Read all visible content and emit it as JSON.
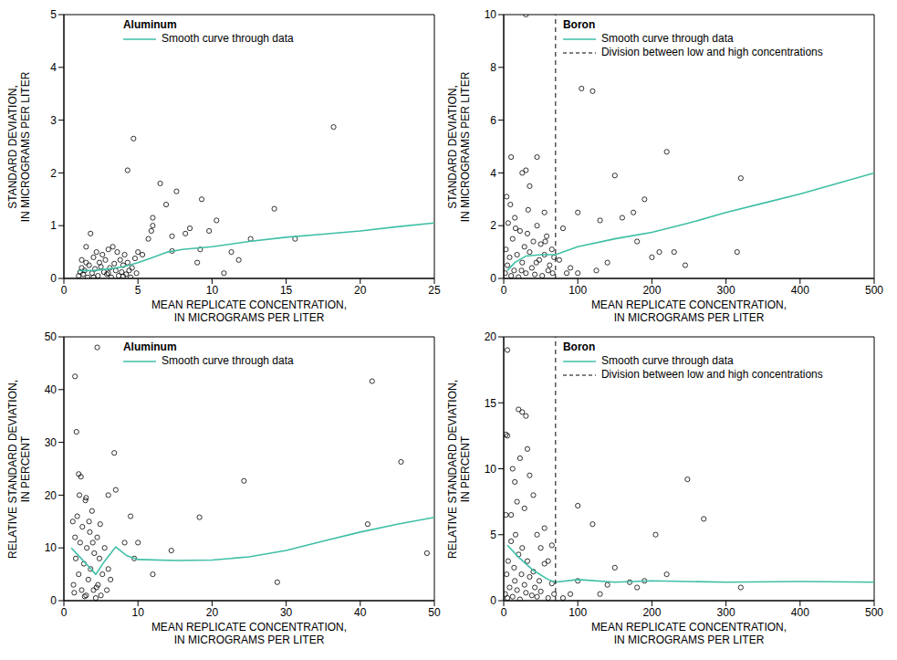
{
  "chart_data": [
    {
      "type": "scatter",
      "title": "Aluminum",
      "xlabel": [
        "MEAN REPLICATE CONCENTRATION,",
        "IN MICROGRAMS PER LITER"
      ],
      "ylabel": [
        "STANDARD DEVIATION,",
        "IN MICROGRAMS PER LITER"
      ],
      "xlim": [
        0,
        25
      ],
      "xticks": [
        0,
        5,
        10,
        15,
        20,
        25
      ],
      "ylim": [
        0,
        5
      ],
      "yticks": [
        0,
        1,
        2,
        3,
        4,
        5
      ],
      "grid": false,
      "series": [
        {
          "type": "scatter",
          "marker": "circle",
          "color": "#000000",
          "x": [
            1,
            1.1,
            1.2,
            1.3,
            1.4,
            1.5,
            1.5,
            1.6,
            1.7,
            1.8,
            1.9,
            2,
            2.1,
            2.2,
            2.3,
            2.4,
            2.5,
            2.6,
            2.7,
            2.8,
            2.9,
            3,
            3.1,
            3.2,
            3.3,
            3.4,
            3.5,
            3.6,
            3.7,
            3.8,
            3.9,
            4,
            4.1,
            4.2,
            4.3,
            4.4,
            4.5,
            4.6,
            4.8,
            4.9,
            5,
            1.2,
            2,
            3,
            4,
            4.3,
            4.7,
            5.3,
            5.7,
            5.9,
            6,
            6,
            6.5,
            6.9,
            7.3,
            7.3,
            7.6,
            8.2,
            8.5,
            9,
            9.2,
            9.3,
            9.8,
            10.3,
            10.8,
            11.3,
            11.8,
            12.6,
            14.2,
            15.6,
            18.2
          ],
          "values": [
            0.05,
            0.12,
            0.2,
            0.08,
            0.15,
            0.6,
            0.3,
            0.02,
            0.25,
            0.85,
            0.1,
            0.4,
            0.18,
            0.5,
            0.05,
            0.3,
            0.22,
            0.45,
            0.12,
            0.35,
            0.08,
            0.55,
            0.2,
            0.02,
            0.6,
            0.28,
            0.15,
            0.5,
            0.05,
            0.35,
            0.12,
            0.25,
            0.45,
            0.08,
            0.3,
            0.15,
            0.02,
            0.2,
            0.38,
            0.1,
            0.5,
            0.35,
            0.02,
            0.1,
            0.04,
            2.05,
            2.65,
            0.45,
            0.75,
            0.9,
            1.0,
            1.15,
            1.8,
            1.4,
            0.8,
            0.52,
            1.65,
            0.85,
            0.95,
            0.3,
            0.55,
            1.5,
            0.9,
            1.1,
            0.1,
            0.5,
            0.35,
            0.75,
            1.32,
            0.75,
            2.87
          ]
        },
        {
          "type": "line",
          "name": "Smooth curve through data",
          "color": "#3fbfa6",
          "line_style": "solid",
          "x": [
            1,
            2,
            3,
            4,
            5,
            6,
            7,
            8,
            10,
            12.5,
            15,
            17.5,
            20,
            22.5,
            25
          ],
          "values": [
            0.15,
            0.15,
            0.18,
            0.22,
            0.3,
            0.4,
            0.5,
            0.55,
            0.6,
            0.7,
            0.78,
            0.84,
            0.9,
            0.98,
            1.05
          ]
        }
      ]
    },
    {
      "type": "scatter",
      "title": "Boron",
      "xlabel": [
        "MEAN REPLICATE CONCENTRATION,",
        "IN MICROGRAMS PER LITER"
      ],
      "ylabel": [
        "STANDARD DEVIATION,",
        "IN MICROGRAMS PER LITER"
      ],
      "xlim": [
        0,
        500
      ],
      "xticks": [
        0,
        100,
        200,
        300,
        400,
        500
      ],
      "ylim": [
        0,
        10
      ],
      "yticks": [
        0,
        2,
        4,
        6,
        8,
        10
      ],
      "grid": false,
      "series": [
        {
          "type": "scatter",
          "marker": "circle",
          "color": "#000000",
          "x": [
            2,
            3,
            5,
            6,
            8,
            10,
            12,
            14,
            15,
            18,
            20,
            22,
            25,
            28,
            30,
            33,
            35,
            38,
            40,
            42,
            45,
            48,
            50,
            52,
            55,
            58,
            60,
            62,
            65,
            68,
            4,
            9,
            16,
            24,
            32,
            44,
            56,
            66,
            10,
            25,
            30,
            35,
            45,
            55,
            30,
            75,
            80,
            85,
            90,
            100,
            100,
            105,
            120,
            125,
            130,
            140,
            150,
            160,
            175,
            180,
            190,
            200,
            210,
            220,
            230,
            245,
            315,
            320
          ],
          "values": [
            0.2,
            1.1,
            0.5,
            2.1,
            0.8,
            0.1,
            1.5,
            0.3,
            2.3,
            0.9,
            0.05,
            1.8,
            0.6,
            1.2,
            0.2,
            2.6,
            1.0,
            0.4,
            1.4,
            0.15,
            2.0,
            0.7,
            1.3,
            0.1,
            0.9,
            1.6,
            0.3,
            0.5,
            1.1,
            0.8,
            3.1,
            2.8,
            1.9,
            0.3,
            1.7,
            0.6,
            1.4,
            0.2,
            4.6,
            4,
            4.1,
            3.5,
            4.6,
            2.5,
            10,
            0.7,
            1.9,
            0.2,
            0.4,
            2.5,
            0.2,
            7.2,
            7.1,
            0.3,
            2.2,
            0.6,
            3.9,
            2.3,
            2.5,
            1.4,
            3,
            0.8,
            1,
            4.8,
            1,
            0.5,
            1,
            3.8
          ]
        },
        {
          "type": "line",
          "name": "Smooth curve through data",
          "color": "#3fbfa6",
          "line_style": "solid",
          "x": [
            5,
            15,
            30,
            50,
            70,
            100,
            150,
            200,
            250,
            300,
            350,
            400,
            450,
            500
          ],
          "values": [
            0.3,
            0.6,
            0.85,
            0.9,
            0.9,
            1.2,
            1.5,
            1.75,
            2.1,
            2.5,
            2.85,
            3.2,
            3.6,
            4
          ]
        },
        {
          "type": "line",
          "name": "Division between low and high concentrations",
          "color": "#000000",
          "line_style": "dashed",
          "x": [
            70,
            70
          ],
          "values": [
            0,
            10
          ]
        }
      ]
    },
    {
      "type": "scatter",
      "title": "Aluminum",
      "xlabel": [
        "MEAN REPLICATE CONCENTRATION,",
        "IN MICROGRAMS PER LITER"
      ],
      "ylabel": [
        "RELATIVE STANDARD DEVIATION,",
        "IN PERCENT"
      ],
      "xlim": [
        0,
        50
      ],
      "xticks": [
        0,
        10,
        20,
        30,
        40,
        50
      ],
      "ylim": [
        0,
        50
      ],
      "yticks": [
        0,
        10,
        20,
        30,
        40,
        50
      ],
      "grid": false,
      "series": [
        {
          "type": "scatter",
          "marker": "circle",
          "color": "#000000",
          "x": [
            1.2,
            1.3,
            1.5,
            1.6,
            1.8,
            2,
            2.2,
            2.4,
            2.5,
            2.7,
            2.9,
            3,
            3.1,
            3.3,
            3.5,
            3.6,
            3.8,
            4,
            4.1,
            4.3,
            4.5,
            4.6,
            4.8,
            5,
            5.2,
            5.5,
            5.8,
            6,
            6.3,
            1.4,
            2.1,
            2.8,
            3.4,
            3.9,
            4.4,
            4.9,
            1.5,
            1.7,
            2,
            2.3,
            3,
            4.5,
            6,
            6.8,
            7,
            8.2,
            9,
            9.5,
            10,
            12,
            14.5,
            18.3,
            24.3,
            28.8,
            41,
            41.6,
            45.5,
            49
          ],
          "values": [
            15,
            3,
            12,
            8,
            16,
            5,
            11,
            2,
            14,
            7,
            19,
            1,
            10,
            4,
            13,
            6,
            17,
            2,
            9,
            0.5,
            12,
            3,
            8,
            1,
            5,
            10,
            2,
            6,
            4,
            1.5,
            20,
            0.8,
            15,
            11,
            2.5,
            14.5,
            42.5,
            32,
            24,
            23.5,
            19.5,
            48,
            20,
            28,
            21,
            11,
            16,
            8,
            11,
            5,
            9.5,
            15.8,
            22.7,
            3.5,
            14.5,
            41.6,
            26.3,
            9
          ]
        },
        {
          "type": "line",
          "name": "Smooth curve through data",
          "color": "#3fbfa6",
          "line_style": "solid",
          "x": [
            1,
            2,
            3,
            4.3,
            5.5,
            7,
            8.5,
            10,
            15,
            20,
            25,
            30,
            35,
            40,
            45,
            50
          ],
          "values": [
            10,
            8.5,
            7,
            5,
            7.5,
            10.2,
            8.5,
            7.8,
            7.6,
            7.7,
            8.3,
            9.5,
            11.3,
            13,
            14.5,
            15.8
          ]
        }
      ]
    },
    {
      "type": "scatter",
      "title": "Boron",
      "xlabel": [
        "MEAN REPLICATE CONCENTRATION,",
        "IN MICROGRAMS PER LITER"
      ],
      "ylabel": [
        "RELATIVE STANDARD DEVIATION,",
        "IN PERCENT"
      ],
      "xlim": [
        0,
        500
      ],
      "xticks": [
        0,
        100,
        200,
        300,
        400,
        500
      ],
      "ylim": [
        0,
        20
      ],
      "yticks": [
        0,
        5,
        10,
        15,
        20
      ],
      "grid": false,
      "series": [
        {
          "type": "scatter",
          "marker": "circle",
          "color": "#000000",
          "x": [
            2,
            3,
            4,
            5,
            6,
            8,
            10,
            12,
            14,
            15,
            16,
            18,
            20,
            22,
            24,
            25,
            28,
            30,
            32,
            35,
            38,
            40,
            42,
            45,
            48,
            50,
            55,
            60,
            65,
            68,
            5,
            3,
            5,
            20,
            25,
            30,
            32,
            22,
            12,
            15,
            35,
            40,
            18,
            10,
            28,
            45,
            50,
            55,
            60,
            65,
            80,
            90,
            100,
            100,
            120,
            130,
            140,
            150,
            170,
            180,
            190,
            205,
            220,
            248,
            270,
            320
          ],
          "values": [
            0.5,
            6.5,
            2,
            0.2,
            3,
            1,
            4.5,
            0.3,
            2.5,
            1.5,
            5,
            0.8,
            3.5,
            0.1,
            2,
            4,
            1.2,
            0.6,
            3,
            1.8,
            0.4,
            2.2,
            1,
            0.3,
            1.5,
            0.7,
            2.8,
            0.2,
            1.3,
            0.5,
            19,
            12.6,
            12.5,
            14.5,
            14.3,
            14,
            11.5,
            10.8,
            10,
            9,
            9.5,
            8,
            7.5,
            6.5,
            7,
            5,
            4,
            5.5,
            3,
            4.2,
            0.2,
            0.5,
            7.2,
            1.5,
            5.8,
            0.5,
            1.2,
            2.5,
            1.4,
            1,
            1.5,
            5,
            2,
            9.2,
            6.2,
            1
          ]
        },
        {
          "type": "line",
          "name": "Smooth curve through data",
          "color": "#3fbfa6",
          "line_style": "solid",
          "x": [
            5,
            20,
            40,
            60,
            70,
            100,
            150,
            200,
            300,
            400,
            500
          ],
          "values": [
            4.2,
            3.3,
            2.3,
            1.6,
            1.4,
            1.6,
            1.4,
            1.5,
            1.4,
            1.45,
            1.4
          ]
        },
        {
          "type": "line",
          "name": "Division between low and high concentrations",
          "color": "#000000",
          "line_style": "dashed",
          "x": [
            70,
            70
          ],
          "values": [
            0,
            20
          ]
        }
      ]
    }
  ]
}
